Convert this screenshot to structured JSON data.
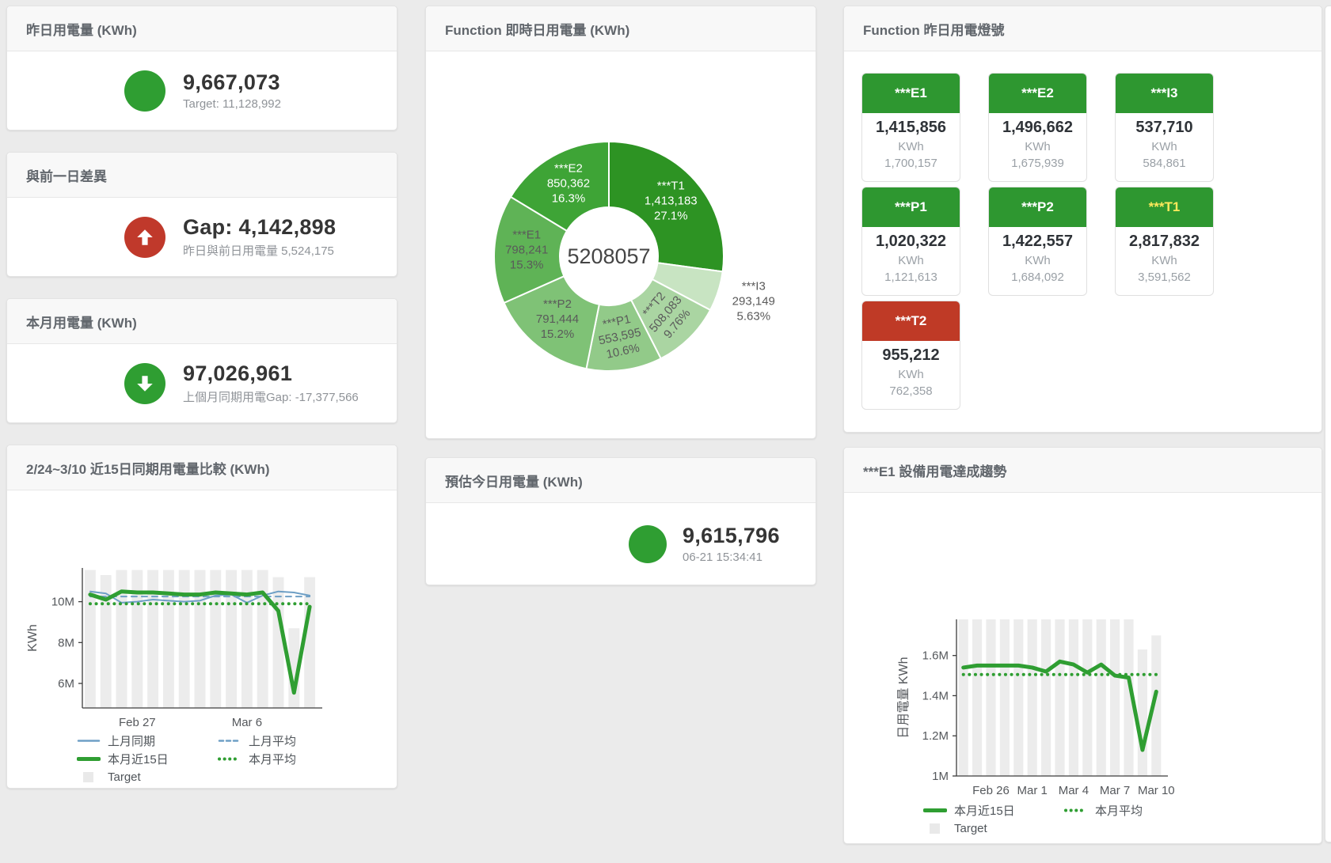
{
  "cards": {
    "yesterday": {
      "title": "昨日用電量 (KWh)",
      "value": "9,667,073",
      "subtext": "Target: 11,128,992",
      "status_color": "#2f9e32"
    },
    "gap": {
      "title": "與前一日差異",
      "value": "Gap: 4,142,898",
      "subtext": "昨日與前日用電量 5,524,175",
      "status_color": "#c0392b",
      "direction": "up"
    },
    "month": {
      "title": "本月用電量 (KWh)",
      "value": "97,026,961",
      "subtext": "上個月同期用電Gap: -17,377,566",
      "status_color": "#2f9e32",
      "direction": "down"
    },
    "realtime": {
      "title": "Function 即時日用電量 (KWh)"
    },
    "estimate": {
      "title": "預估今日用電量 (KWh)",
      "value": "9,615,796",
      "subtext": "06-21 15:34:41",
      "status_color": "#2f9e32"
    },
    "lamps": {
      "title": "Function 昨日用電燈號",
      "tiles": [
        {
          "name": "***E1",
          "value": "1,415,856",
          "unit": "KWh",
          "target": "1,700,157",
          "header_color": "#2e9730",
          "label_color": "#ffffff"
        },
        {
          "name": "***E2",
          "value": "1,496,662",
          "unit": "KWh",
          "target": "1,675,939",
          "header_color": "#2e9730",
          "label_color": "#ffffff"
        },
        {
          "name": "***I3",
          "value": "537,710",
          "unit": "KWh",
          "target": "584,861",
          "header_color": "#2e9730",
          "label_color": "#ffffff"
        },
        {
          "name": "***P1",
          "value": "1,020,322",
          "unit": "KWh",
          "target": "1,121,613",
          "header_color": "#2e9730",
          "label_color": "#ffffff"
        },
        {
          "name": "***P2",
          "value": "1,422,557",
          "unit": "KWh",
          "target": "1,684,092",
          "header_color": "#2e9730",
          "label_color": "#ffffff"
        },
        {
          "name": "***T1",
          "value": "2,817,832",
          "unit": "KWh",
          "target": "3,591,562",
          "header_color": "#2e9730",
          "label_color": "#ffe95c"
        },
        {
          "name": "***T2",
          "value": "955,212",
          "unit": "KWh",
          "target": "762,358",
          "header_color": "#bf3a26",
          "label_color": "#ffffff"
        }
      ]
    },
    "compare": {
      "title": "2/24~3/10 近15日同期用電量比較 (KWh)"
    },
    "trend": {
      "title": "***E1 設備用電達成趨勢"
    }
  },
  "chart_data": [
    {
      "type": "pie",
      "title": "Function 即時日用電量 (KWh)",
      "center_label": "5208057",
      "legend_position": "none",
      "slices": [
        {
          "name": "***T1",
          "value": 1413183,
          "value_label": "1,413,183",
          "pct_label": "27.1%",
          "color": "#2d9323",
          "label_color": "#ffffff",
          "outside": false,
          "rotate": 0
        },
        {
          "name": "***I3",
          "value": 293149,
          "value_label": "293,149",
          "pct_label": "5.63%",
          "color": "#c8e4c2",
          "label_color": "#5a5a5a",
          "outside": true,
          "rotate": 0
        },
        {
          "name": "***T2",
          "value": 508083,
          "value_label": "508,083",
          "pct_label": "9.76%",
          "color": "#aad5a2",
          "label_color": "#5a5a5a",
          "outside": false,
          "rotate": -50
        },
        {
          "name": "***P1",
          "value": 553595,
          "value_label": "553,595",
          "pct_label": "10.6%",
          "color": "#92ca89",
          "label_color": "#5a5a5a",
          "outside": false,
          "rotate": -12
        },
        {
          "name": "***P2",
          "value": 791444,
          "value_label": "791,444",
          "pct_label": "15.2%",
          "color": "#7fc276",
          "label_color": "#5a5a5a",
          "outside": false,
          "rotate": 0
        },
        {
          "name": "***E1",
          "value": 798241,
          "value_label": "798,241",
          "pct_label": "15.3%",
          "color": "#5fb356",
          "label_color": "#5a5a5a",
          "outside": false,
          "rotate": 0
        },
        {
          "name": "***E2",
          "value": 850362,
          "value_label": "850,362",
          "pct_label": "16.3%",
          "color": "#3ea436",
          "label_color": "#ffffff",
          "outside": false,
          "rotate": 0
        }
      ]
    },
    {
      "type": "line",
      "title": "2/24~3/10 近15日同期用電量比較 (KWh)",
      "ylabel": "KWh",
      "ylim": [
        4800000,
        11650000
      ],
      "grid": false,
      "yticks": [
        {
          "value": 6000000,
          "label": "6M"
        },
        {
          "value": 8000000,
          "label": "8M"
        },
        {
          "value": 10000000,
          "label": "10M"
        }
      ],
      "xticks": [
        {
          "index": 3,
          "label": "Feb 27"
        },
        {
          "index": 10,
          "label": "Mar 6"
        }
      ],
      "target_bars": {
        "name": "Target",
        "color": "#ececec",
        "values": [
          11550000,
          11300000,
          11550000,
          11550000,
          11550000,
          11550000,
          11550000,
          11550000,
          11550000,
          11550000,
          11550000,
          11550000,
          11200000,
          8700000,
          11200000
        ]
      },
      "series": [
        {
          "name": "上月同期",
          "style": "solid",
          "width": 2,
          "color": "#6e9fc5",
          "values": [
            10500000,
            10400000,
            9950000,
            10000000,
            10100000,
            10050000,
            10000000,
            10050000,
            10300000,
            10350000,
            9950000,
            10300000,
            10500000,
            10450000,
            10300000
          ]
        },
        {
          "name": "上月平均",
          "style": "dashed",
          "width": 2,
          "color": "#6e9fc5",
          "constant": 10250000
        },
        {
          "name": "本月近15日",
          "style": "solid",
          "width": 5,
          "color": "#2f9e32",
          "values": [
            10350000,
            10100000,
            10500000,
            10450000,
            10450000,
            10400000,
            10350000,
            10350000,
            10450000,
            10400000,
            10350000,
            10450000,
            9550000,
            5550000,
            9750000
          ]
        },
        {
          "name": "本月平均",
          "style": "dotted",
          "width": 4,
          "color": "#2f9e32",
          "constant": 9900000
        }
      ],
      "legend": [
        {
          "label": "上月同期",
          "marker": "line",
          "color": "#6e9fc5"
        },
        {
          "label": "上月平均",
          "marker": "dashed",
          "color": "#6e9fc5"
        },
        {
          "label": "本月近15日",
          "marker": "thick",
          "color": "#2f9e32"
        },
        {
          "label": "本月平均",
          "marker": "dotted",
          "color": "#2f9e32"
        },
        {
          "label": "Target",
          "marker": "box",
          "color": "#e9e9e9"
        }
      ]
    },
    {
      "type": "line",
      "title": "***E1 設備用電達成趨勢",
      "ylabel": "日用電量 KWh",
      "ylim": [
        1000000,
        1780000
      ],
      "grid": false,
      "yticks": [
        {
          "value": 1000000,
          "label": "1M"
        },
        {
          "value": 1200000,
          "label": "1.2M"
        },
        {
          "value": 1400000,
          "label": "1.4M"
        },
        {
          "value": 1600000,
          "label": "1.6M"
        }
      ],
      "xticks": [
        {
          "index": 2,
          "label": "Feb 26"
        },
        {
          "index": 5,
          "label": "Mar 1"
        },
        {
          "index": 8,
          "label": "Mar 4"
        },
        {
          "index": 11,
          "label": "Mar 7"
        },
        {
          "index": 14,
          "label": "Mar 10"
        }
      ],
      "target_bars": {
        "name": "Target",
        "color": "#ececec",
        "values": [
          1780000,
          1780000,
          1780000,
          1780000,
          1780000,
          1780000,
          1780000,
          1780000,
          1780000,
          1780000,
          1780000,
          1780000,
          1780000,
          1630000,
          1700000
        ]
      },
      "series": [
        {
          "name": "本月近15日",
          "style": "solid",
          "width": 5,
          "color": "#2f9e32",
          "values": [
            1540000,
            1550000,
            1550000,
            1550000,
            1550000,
            1540000,
            1520000,
            1570000,
            1555000,
            1515000,
            1555000,
            1500000,
            1490000,
            1130000,
            1420000
          ]
        },
        {
          "name": "本月平均",
          "style": "dotted",
          "width": 4,
          "color": "#2f9e32",
          "constant": 1505000
        }
      ],
      "legend": [
        {
          "label": "本月近15日",
          "marker": "thick",
          "color": "#2f9e32"
        },
        {
          "label": "本月平均",
          "marker": "dotted",
          "color": "#2f9e32"
        },
        {
          "label": "Target",
          "marker": "box",
          "color": "#e9e9e9"
        }
      ]
    }
  ]
}
